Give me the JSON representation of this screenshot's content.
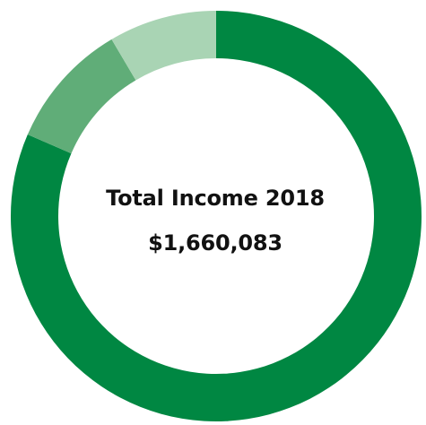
{
  "chart_data": {
    "type": "pie",
    "title": "Total Income 2018",
    "total_label": "$1,660,083",
    "donut": true,
    "legend": "none",
    "values": [
      0.815,
      0.1,
      0.085
    ],
    "colors": [
      "#008742",
      "#60ad78",
      "#a9d4b4"
    ]
  }
}
